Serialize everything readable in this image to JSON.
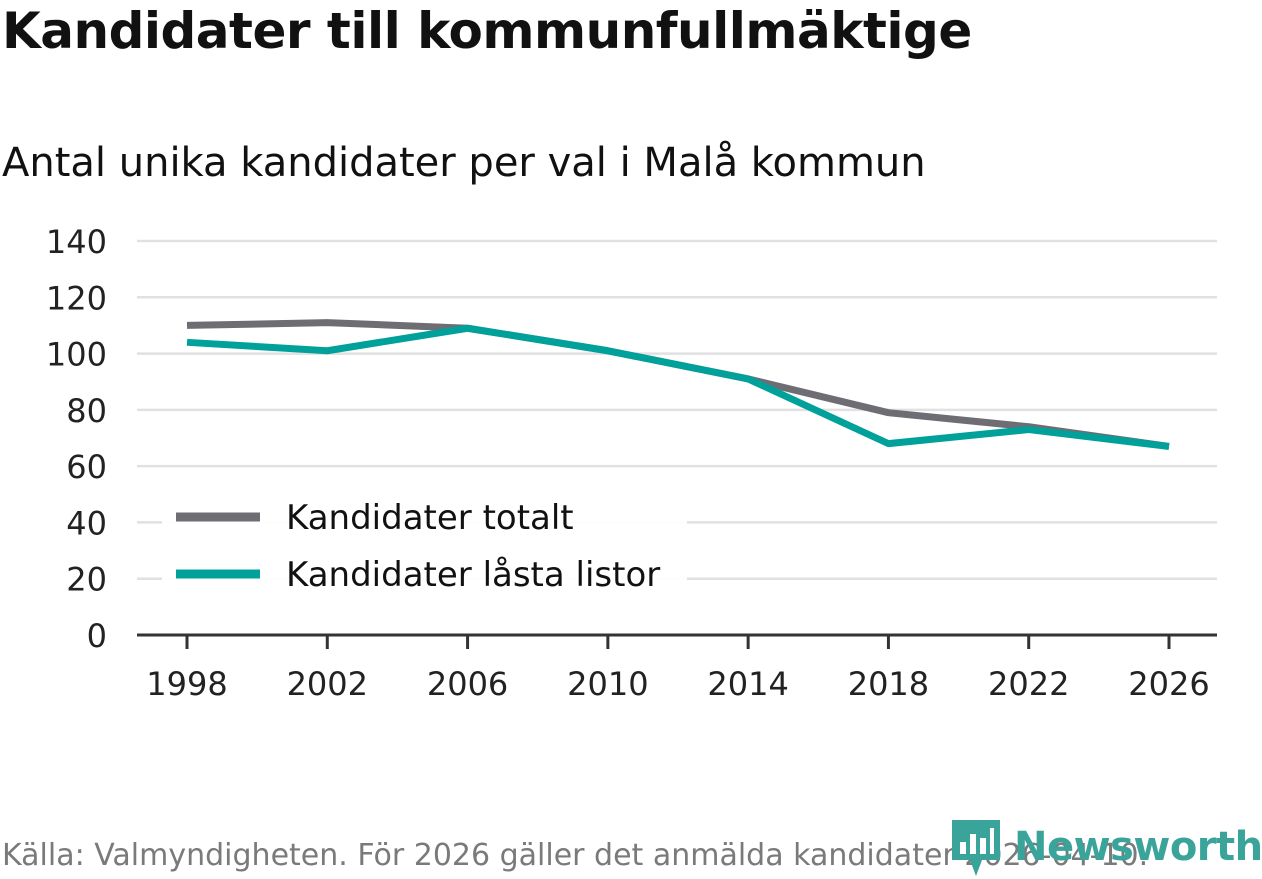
{
  "header": {
    "title": "Kandidater till kommunfullmäktige",
    "subtitle": "Antal unika kandidater per val i Malå kommun"
  },
  "footer": {
    "source": "Källa: Valmyndigheten. För 2026 gäller det anmälda kandidater 2026-04-10.",
    "brand": "Newsworthy"
  },
  "colors": {
    "totalt": "#6e6d73",
    "lasta": "#00a19a",
    "grid": "#e1e1e1",
    "axis": "#333333",
    "brand": "#3aa39a"
  },
  "chart_data": {
    "type": "line",
    "title": "Kandidater till kommunfullmäktige",
    "subtitle": "Antal unika kandidater per val i Malå kommun",
    "x": [
      1998,
      2002,
      2006,
      2010,
      2014,
      2018,
      2022,
      2026
    ],
    "x_tick_labels": [
      "1998",
      "2002",
      "2006",
      "2010",
      "2014",
      "2018",
      "2022",
      "2026"
    ],
    "y_ticks": [
      0,
      20,
      40,
      60,
      80,
      100,
      120,
      140
    ],
    "y_tick_labels": [
      "0",
      "20",
      "40",
      "60",
      "80",
      "100",
      "120",
      "140"
    ],
    "ylim": [
      0,
      140
    ],
    "grid": true,
    "legend_position": "bottom-left",
    "series": [
      {
        "name": "Kandidater totalt",
        "values": [
          110,
          111,
          109,
          101,
          91,
          79,
          74,
          67
        ]
      },
      {
        "name": "Kandidater låsta listor",
        "values": [
          104,
          101,
          109,
          101,
          91,
          68,
          73,
          67
        ]
      }
    ]
  }
}
